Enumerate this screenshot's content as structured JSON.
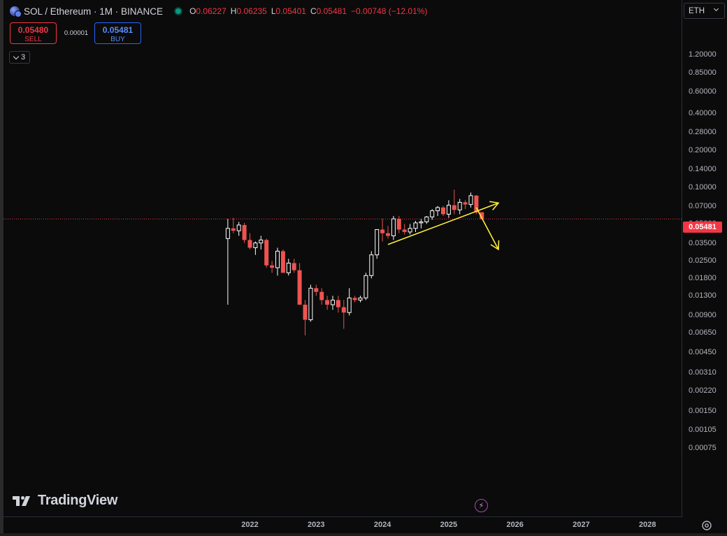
{
  "header": {
    "symbol": "SOL / Ethereum · 1M · BINANCE",
    "ohlc": [
      {
        "k": "O",
        "v": "0.06227"
      },
      {
        "k": "H",
        "v": "0.06235"
      },
      {
        "k": "L",
        "v": "0.05401"
      },
      {
        "k": "C",
        "v": "0.05481"
      },
      {
        "k": "",
        "v": "−0.00748 (−12.01%)"
      }
    ]
  },
  "trade": {
    "sell_price": "0.05480",
    "sell_label": "SELL",
    "spread": "0.00001",
    "buy_price": "0.05481",
    "buy_label": "BUY"
  },
  "indicators": {
    "count": "3"
  },
  "currency": {
    "label": "ETH"
  },
  "last_price": "0.05481",
  "branding": {
    "name": "TradingView"
  },
  "colors": {
    "up": "#ffffff",
    "down": "#ef5350",
    "drawing": "#ffeb3b",
    "last_price": "#f23645"
  },
  "chart_data": {
    "type": "candlestick",
    "scale": "log",
    "ylim": [
      0.00065,
      1.3
    ],
    "xlim": [
      "2021-01",
      "2028-12"
    ],
    "ytick_labels": [
      "1.20000",
      "0.85000",
      "0.60000",
      "0.40000",
      "0.28000",
      "0.20000",
      "0.14000",
      "0.10000",
      "0.07000",
      "0.05000",
      "0.03500",
      "0.02500",
      "0.01800",
      "0.01300",
      "0.00900",
      "0.00650",
      "0.00450",
      "0.00310",
      "0.00220",
      "0.00150",
      "0.00105",
      "0.00075"
    ],
    "xtick_labels": [
      "2022",
      "2023",
      "2024",
      "2025",
      "2026",
      "2027",
      "2028"
    ],
    "last_price": 0.05481,
    "candles": [
      {
        "t": "2021-09",
        "o": 0.038,
        "h": 0.055,
        "l": 0.011,
        "c": 0.046
      },
      {
        "t": "2021-10",
        "o": 0.046,
        "h": 0.056,
        "l": 0.042,
        "c": 0.044
      },
      {
        "t": "2021-11",
        "o": 0.044,
        "h": 0.052,
        "l": 0.04,
        "c": 0.049
      },
      {
        "t": "2021-12",
        "o": 0.049,
        "h": 0.051,
        "l": 0.035,
        "c": 0.037
      },
      {
        "t": "2022-01",
        "o": 0.037,
        "h": 0.042,
        "l": 0.031,
        "c": 0.032
      },
      {
        "t": "2022-02",
        "o": 0.032,
        "h": 0.036,
        "l": 0.028,
        "c": 0.035
      },
      {
        "t": "2022-03",
        "o": 0.035,
        "h": 0.04,
        "l": 0.031,
        "c": 0.037
      },
      {
        "t": "2022-04",
        "o": 0.037,
        "h": 0.038,
        "l": 0.022,
        "c": 0.023
      },
      {
        "t": "2022-05",
        "o": 0.023,
        "h": 0.025,
        "l": 0.02,
        "c": 0.022
      },
      {
        "t": "2022-06",
        "o": 0.022,
        "h": 0.032,
        "l": 0.019,
        "c": 0.03
      },
      {
        "t": "2022-07",
        "o": 0.03,
        "h": 0.031,
        "l": 0.02,
        "c": 0.02
      },
      {
        "t": "2022-08",
        "o": 0.02,
        "h": 0.026,
        "l": 0.019,
        "c": 0.024
      },
      {
        "t": "2022-09",
        "o": 0.024,
        "h": 0.026,
        "l": 0.02,
        "c": 0.021
      },
      {
        "t": "2022-10",
        "o": 0.021,
        "h": 0.024,
        "l": 0.011,
        "c": 0.011
      },
      {
        "t": "2022-11",
        "o": 0.011,
        "h": 0.012,
        "l": 0.0062,
        "c": 0.0083
      },
      {
        "t": "2022-12",
        "o": 0.0083,
        "h": 0.016,
        "l": 0.008,
        "c": 0.015
      },
      {
        "t": "2023-01",
        "o": 0.015,
        "h": 0.016,
        "l": 0.013,
        "c": 0.014
      },
      {
        "t": "2023-02",
        "o": 0.014,
        "h": 0.015,
        "l": 0.011,
        "c": 0.012
      },
      {
        "t": "2023-03",
        "o": 0.012,
        "h": 0.013,
        "l": 0.01,
        "c": 0.011
      },
      {
        "t": "2023-04",
        "o": 0.011,
        "h": 0.013,
        "l": 0.01,
        "c": 0.012
      },
      {
        "t": "2023-05",
        "o": 0.012,
        "h": 0.013,
        "l": 0.0095,
        "c": 0.0105
      },
      {
        "t": "2023-06",
        "o": 0.0105,
        "h": 0.012,
        "l": 0.007,
        "c": 0.0095
      },
      {
        "t": "2023-07",
        "o": 0.0095,
        "h": 0.015,
        "l": 0.009,
        "c": 0.0125
      },
      {
        "t": "2023-08",
        "o": 0.0125,
        "h": 0.013,
        "l": 0.0115,
        "c": 0.012
      },
      {
        "t": "2023-09",
        "o": 0.012,
        "h": 0.013,
        "l": 0.0115,
        "c": 0.0125
      },
      {
        "t": "2023-10",
        "o": 0.0125,
        "h": 0.02,
        "l": 0.012,
        "c": 0.019
      },
      {
        "t": "2023-11",
        "o": 0.019,
        "h": 0.03,
        "l": 0.018,
        "c": 0.028
      },
      {
        "t": "2023-12",
        "o": 0.028,
        "h": 0.045,
        "l": 0.026,
        "c": 0.045
      },
      {
        "t": "2024-01",
        "o": 0.045,
        "h": 0.055,
        "l": 0.036,
        "c": 0.042
      },
      {
        "t": "2024-02",
        "o": 0.042,
        "h": 0.048,
        "l": 0.038,
        "c": 0.04
      },
      {
        "t": "2024-03",
        "o": 0.04,
        "h": 0.058,
        "l": 0.037,
        "c": 0.055
      },
      {
        "t": "2024-04",
        "o": 0.055,
        "h": 0.058,
        "l": 0.042,
        "c": 0.045
      },
      {
        "t": "2024-05",
        "o": 0.045,
        "h": 0.05,
        "l": 0.041,
        "c": 0.043
      },
      {
        "t": "2024-06",
        "o": 0.043,
        "h": 0.05,
        "l": 0.041,
        "c": 0.046
      },
      {
        "t": "2024-07",
        "o": 0.046,
        "h": 0.053,
        "l": 0.043,
        "c": 0.051
      },
      {
        "t": "2024-08",
        "o": 0.051,
        "h": 0.055,
        "l": 0.046,
        "c": 0.052
      },
      {
        "t": "2024-09",
        "o": 0.052,
        "h": 0.058,
        "l": 0.05,
        "c": 0.057
      },
      {
        "t": "2024-10",
        "o": 0.057,
        "h": 0.066,
        "l": 0.054,
        "c": 0.064
      },
      {
        "t": "2024-11",
        "o": 0.064,
        "h": 0.07,
        "l": 0.058,
        "c": 0.068
      },
      {
        "t": "2024-12",
        "o": 0.068,
        "h": 0.07,
        "l": 0.058,
        "c": 0.06
      },
      {
        "t": "2025-01",
        "o": 0.06,
        "h": 0.078,
        "l": 0.056,
        "c": 0.071
      },
      {
        "t": "2025-02",
        "o": 0.071,
        "h": 0.095,
        "l": 0.06,
        "c": 0.065
      },
      {
        "t": "2025-03",
        "o": 0.065,
        "h": 0.08,
        "l": 0.06,
        "c": 0.075
      },
      {
        "t": "2025-04",
        "o": 0.075,
        "h": 0.078,
        "l": 0.066,
        "c": 0.072
      },
      {
        "t": "2025-05",
        "o": 0.072,
        "h": 0.09,
        "l": 0.068,
        "c": 0.085
      },
      {
        "t": "2025-06",
        "o": 0.085,
        "h": 0.086,
        "l": 0.06,
        "c": 0.062
      },
      {
        "t": "2025-07",
        "o": 0.06227,
        "h": 0.06235,
        "l": 0.05401,
        "c": 0.05481
      }
    ],
    "drawings": [
      {
        "type": "trend-arrow",
        "from": {
          "t": "2024-02",
          "p": 0.034
        },
        "to": {
          "t": "2025-10",
          "p": 0.074
        }
      },
      {
        "type": "arrow",
        "from": {
          "t": "2025-06",
          "p": 0.068
        },
        "to": {
          "t": "2025-10",
          "p": 0.031
        }
      }
    ]
  }
}
